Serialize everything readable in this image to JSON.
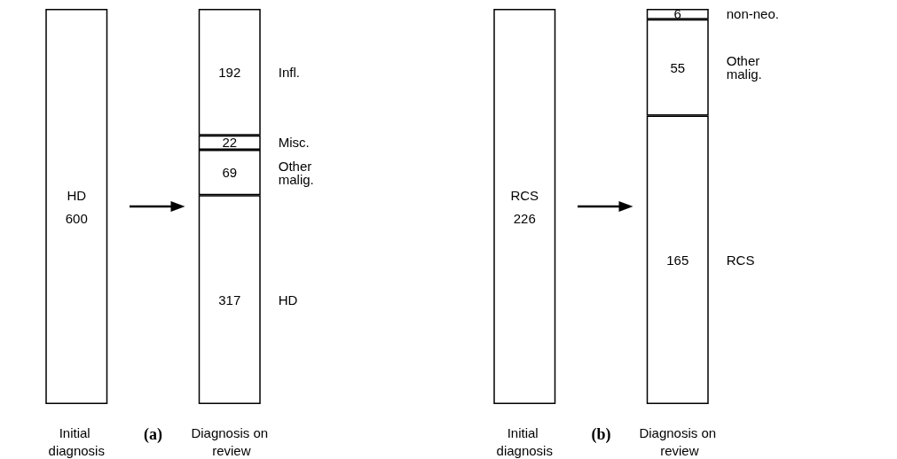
{
  "chart_data": [
    {
      "type": "bar",
      "stacked": true,
      "data_labels": true,
      "legend": false,
      "categories": [
        "Initial diagnosis",
        "Diagnosis on review"
      ],
      "annotations": [
        "(a)"
      ],
      "series": [
        {
          "name": "HD",
          "color": "#ffffff",
          "values": [
            600,
            317
          ]
        },
        {
          "name": "Other malig.",
          "color": "#ffffff",
          "values": [
            null,
            69
          ]
        },
        {
          "name": "Misc.",
          "color": "#ffffff",
          "values": [
            null,
            22
          ]
        },
        {
          "name": "Infl.",
          "color": "#ffffff",
          "values": [
            null,
            192
          ]
        }
      ]
    },
    {
      "type": "bar",
      "stacked": true,
      "data_labels": true,
      "legend": false,
      "categories": [
        "Initial diagnosis",
        "Diagnosis on review"
      ],
      "annotations": [
        "(b)"
      ],
      "series": [
        {
          "name": "RCS",
          "color": "#ffffff",
          "values": [
            226,
            165
          ]
        },
        {
          "name": "Other malig.",
          "color": "#ffffff",
          "values": [
            null,
            55
          ]
        },
        {
          "name": "non-neo.",
          "color": "#ffffff",
          "values": [
            null,
            6
          ]
        }
      ]
    }
  ]
}
